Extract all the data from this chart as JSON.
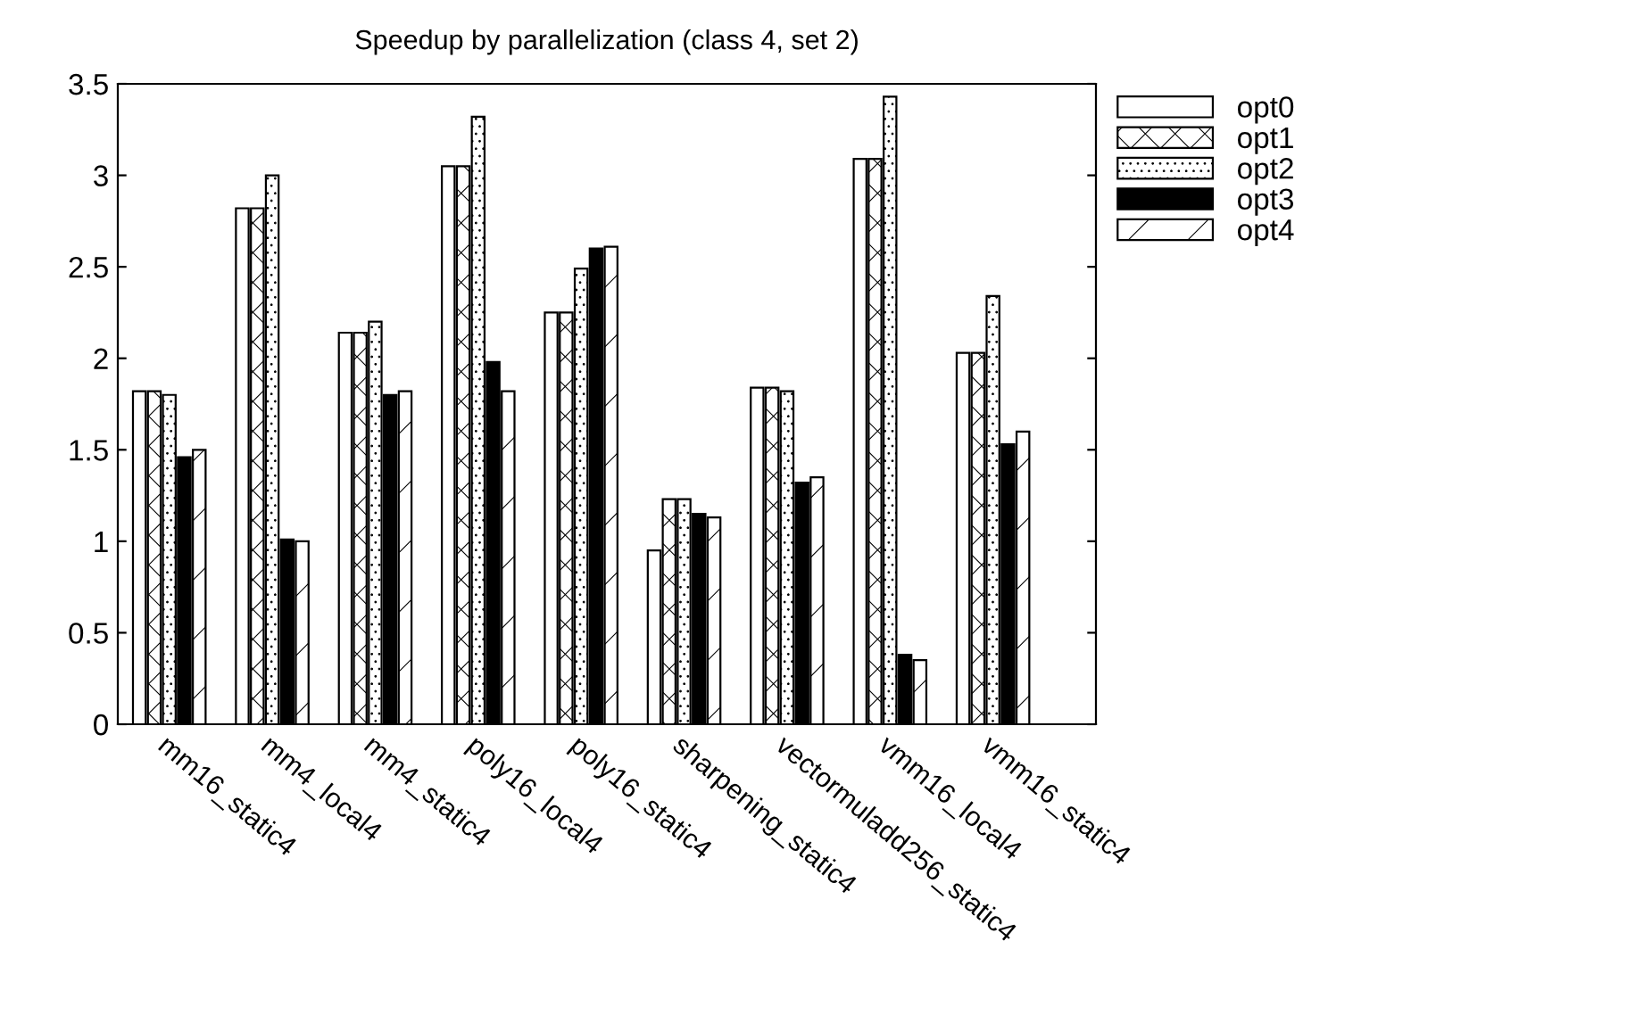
{
  "chart_data": {
    "type": "bar",
    "title": "Speedup by parallelization (class 4, set 2)",
    "categories": [
      "mm16_static4",
      "mm4_local4",
      "mm4_static4",
      "poly16_local4",
      "poly16_static4",
      "sharpening_static4",
      "vectormuladd256_static4",
      "vmm16_local4",
      "vmm16_static4"
    ],
    "series": [
      {
        "name": "opt0",
        "color": "#ffffff",
        "values": [
          1.82,
          2.82,
          2.14,
          3.05,
          2.25,
          0.95,
          1.84,
          3.09,
          2.03
        ]
      },
      {
        "name": "opt1",
        "color": "#000000",
        "values": [
          1.82,
          2.82,
          2.14,
          3.05,
          2.25,
          1.23,
          1.84,
          3.09,
          2.03
        ]
      },
      {
        "name": "opt2",
        "color": "#000000",
        "values": [
          1.8,
          3.0,
          2.2,
          3.32,
          2.49,
          1.23,
          1.82,
          3.43,
          2.34
        ]
      },
      {
        "name": "opt3",
        "color": "#000000",
        "values": [
          1.46,
          1.01,
          1.8,
          1.98,
          2.6,
          1.15,
          1.32,
          0.38,
          1.53
        ]
      },
      {
        "name": "opt4",
        "color": "#000000",
        "values": [
          1.5,
          1.0,
          1.82,
          1.82,
          2.61,
          1.13,
          1.35,
          0.35,
          1.6
        ]
      }
    ],
    "ylim": [
      0,
      3.5
    ],
    "yticks": [
      0,
      0.5,
      1,
      1.5,
      2,
      2.5,
      3,
      3.5
    ],
    "grid": false,
    "legend": "right"
  }
}
